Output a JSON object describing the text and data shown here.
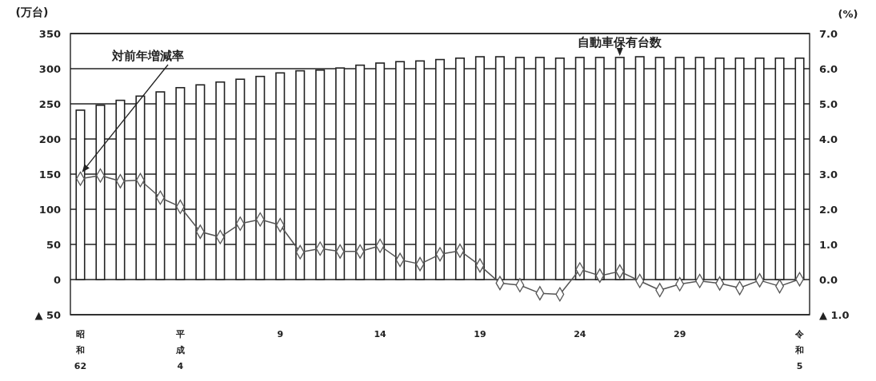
{
  "chart_data": {
    "type": "bar",
    "ylabel": "(万台)",
    "y2label": "(%)",
    "categories": [
      "昭和62",
      null,
      null,
      null,
      null,
      "平成4",
      null,
      null,
      null,
      null,
      "9",
      null,
      null,
      null,
      null,
      "14",
      null,
      null,
      null,
      null,
      "19",
      null,
      null,
      null,
      null,
      "24",
      null,
      null,
      null,
      null,
      "29",
      null,
      null,
      null,
      null,
      null,
      "令和5"
    ],
    "series": [
      {
        "name": "自動車保有台数",
        "color": "#ffffff",
        "values": [
          241,
          248,
          255,
          261,
          267,
          273,
          277,
          281,
          285,
          289,
          294,
          297,
          298,
          301,
          305,
          308,
          310,
          311,
          313,
          315,
          317,
          317,
          316,
          316,
          315,
          316,
          316,
          316,
          317,
          316,
          316,
          316,
          315,
          315,
          315,
          315,
          315
        ]
      },
      {
        "type": "line",
        "name": "対前年増減率",
        "axis": "y2",
        "color": "#555555",
        "marker": "diamond",
        "values": [
          2.87,
          2.96,
          2.8,
          2.83,
          2.33,
          2.07,
          1.36,
          1.21,
          1.59,
          1.71,
          1.55,
          0.78,
          0.88,
          0.8,
          0.8,
          0.96,
          0.56,
          0.44,
          0.72,
          0.82,
          0.4,
          -0.1,
          -0.16,
          -0.39,
          -0.42,
          0.29,
          0.11,
          0.23,
          -0.04,
          -0.3,
          -0.13,
          -0.04,
          -0.11,
          -0.24,
          -0.02,
          -0.19,
          0.01
        ]
      }
    ],
    "ylim": [
      -50,
      350
    ],
    "yticks": [
      {
        "value": -50,
        "label": "▲ 50"
      },
      0,
      50,
      100,
      150,
      200,
      250,
      300,
      350
    ],
    "y2lim": [
      -1,
      7
    ],
    "y2ticks": [
      {
        "value": -1,
        "label": "▲ 1.0"
      },
      {
        "value": 0,
        "label": "0.0"
      },
      {
        "value": 1,
        "label": "1.0"
      },
      {
        "value": 2,
        "label": "2.0"
      },
      {
        "value": 3,
        "label": "3.0"
      },
      {
        "value": 4,
        "label": "4.0"
      },
      {
        "value": 5,
        "label": "5.0"
      },
      {
        "value": 6,
        "label": "6.0"
      },
      {
        "value": 7,
        "label": "7.0"
      }
    ],
    "grid": "y",
    "legend": false
  }
}
